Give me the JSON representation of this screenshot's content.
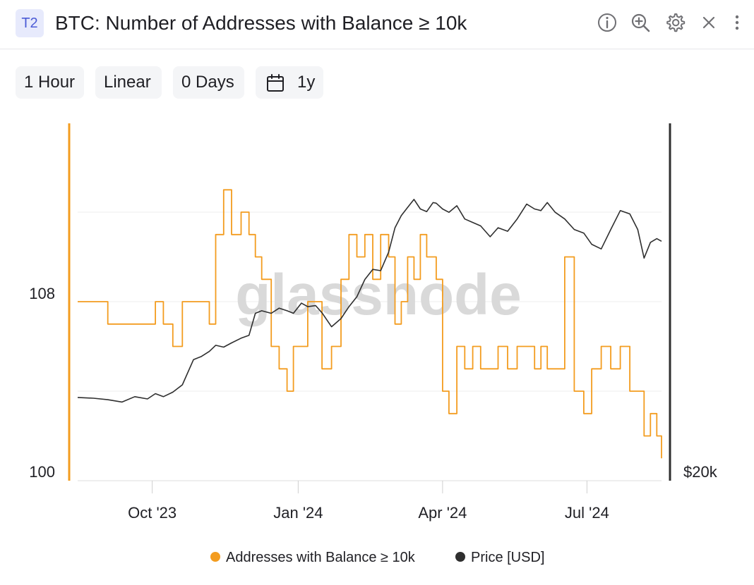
{
  "header": {
    "badge": "T2",
    "title": "BTC: Number of Addresses with Balance ≥ 10k",
    "icons": [
      "info-icon",
      "zoom-in-icon",
      "gear-icon",
      "close-icon",
      "more-vertical-icon"
    ]
  },
  "controls": {
    "resolution": "1 Hour",
    "scale": "Linear",
    "smoothing": "0 Days",
    "range": "1y",
    "range_icon": "calendar-icon"
  },
  "watermark": "glassnode",
  "colors": {
    "addresses": "#f39c1f",
    "price": "#2f2f2f",
    "grid": "#ececec"
  },
  "chart_data": {
    "type": "line",
    "x_tick_labels": [
      "Oct '23",
      "Jan '24",
      "Apr '24",
      "Jul '24"
    ],
    "left_axis": {
      "tick_labels": [
        "108",
        "100"
      ],
      "ylim": [
        100,
        116
      ]
    },
    "right_axis": {
      "tick_labels": [
        "$20k"
      ],
      "scale": "log",
      "ylim": [
        20000,
        100000
      ]
    },
    "grid": true,
    "legend_position": "bottom",
    "series": [
      {
        "name": "Addresses with Balance ≥ 10k",
        "axis": "left",
        "color": "#f39c1f",
        "x": [
          "2023-08-15",
          "2023-08-25",
          "2023-09-03",
          "2023-09-12",
          "2023-09-20",
          "2023-09-28",
          "2023-10-03",
          "2023-10-08",
          "2023-10-14",
          "2023-10-20",
          "2023-10-27",
          "2023-11-01",
          "2023-11-06",
          "2023-11-10",
          "2023-11-15",
          "2023-11-20",
          "2023-11-26",
          "2023-12-01",
          "2023-12-05",
          "2023-12-09",
          "2023-12-15",
          "2023-12-20",
          "2023-12-25",
          "2023-12-29",
          "2024-01-03",
          "2024-01-07",
          "2024-01-12",
          "2024-01-16",
          "2024-01-22",
          "2024-01-28",
          "2024-02-02",
          "2024-02-07",
          "2024-02-12",
          "2024-02-17",
          "2024-02-22",
          "2024-02-27",
          "2024-03-02",
          "2024-03-06",
          "2024-03-10",
          "2024-03-14",
          "2024-03-18",
          "2024-03-22",
          "2024-03-26",
          "2024-03-28",
          "2024-04-01",
          "2024-04-05",
          "2024-04-10",
          "2024-04-15",
          "2024-04-20",
          "2024-04-25",
          "2024-05-01",
          "2024-05-06",
          "2024-05-12",
          "2024-05-18",
          "2024-05-24",
          "2024-05-29",
          "2024-06-02",
          "2024-06-06",
          "2024-06-11",
          "2024-06-17",
          "2024-06-23",
          "2024-06-29",
          "2024-07-04",
          "2024-07-10",
          "2024-07-16",
          "2024-07-22",
          "2024-07-28",
          "2024-08-02",
          "2024-08-06",
          "2024-08-10",
          "2024-08-14",
          "2024-08-17"
        ],
        "values": [
          108,
          108,
          107,
          107,
          107,
          107,
          108,
          107,
          106,
          108,
          108,
          108,
          107,
          111,
          113,
          111,
          112,
          111,
          110,
          109,
          106,
          105,
          104,
          106,
          106,
          108,
          108,
          105,
          106,
          109,
          111,
          110,
          111,
          109,
          111,
          110,
          107,
          108,
          110,
          109,
          111,
          110,
          110,
          109,
          104,
          103,
          106,
          105,
          106,
          105,
          105,
          106,
          105,
          106,
          106,
          105,
          106,
          105,
          105,
          110,
          104,
          103,
          105,
          106,
          105,
          106,
          104,
          104,
          102,
          103,
          102,
          101
        ]
      },
      {
        "name": "Price [USD]",
        "axis": "right",
        "color": "#2f2f2f",
        "x": [
          "2023-08-15",
          "2023-08-25",
          "2023-09-03",
          "2023-09-12",
          "2023-09-20",
          "2023-09-28",
          "2023-10-03",
          "2023-10-08",
          "2023-10-14",
          "2023-10-20",
          "2023-10-27",
          "2023-11-01",
          "2023-11-06",
          "2023-11-10",
          "2023-11-15",
          "2023-11-20",
          "2023-11-26",
          "2023-12-01",
          "2023-12-05",
          "2023-12-09",
          "2023-12-15",
          "2023-12-20",
          "2023-12-25",
          "2023-12-29",
          "2024-01-03",
          "2024-01-07",
          "2024-01-12",
          "2024-01-16",
          "2024-01-22",
          "2024-01-28",
          "2024-02-02",
          "2024-02-07",
          "2024-02-12",
          "2024-02-17",
          "2024-02-22",
          "2024-02-27",
          "2024-03-02",
          "2024-03-06",
          "2024-03-10",
          "2024-03-14",
          "2024-03-18",
          "2024-03-22",
          "2024-03-26",
          "2024-03-28",
          "2024-04-01",
          "2024-04-05",
          "2024-04-10",
          "2024-04-15",
          "2024-04-20",
          "2024-04-25",
          "2024-05-01",
          "2024-05-06",
          "2024-05-12",
          "2024-05-18",
          "2024-05-24",
          "2024-05-29",
          "2024-06-02",
          "2024-06-06",
          "2024-06-11",
          "2024-06-17",
          "2024-06-23",
          "2024-06-29",
          "2024-07-04",
          "2024-07-10",
          "2024-07-16",
          "2024-07-22",
          "2024-07-28",
          "2024-08-02",
          "2024-08-06",
          "2024-08-10",
          "2024-08-14",
          "2024-08-17"
        ],
        "values": [
          29100,
          29000,
          28800,
          28500,
          29200,
          28900,
          29600,
          29200,
          29800,
          30800,
          34500,
          35000,
          35800,
          36800,
          36500,
          37200,
          38000,
          38500,
          42500,
          43000,
          42500,
          43500,
          43000,
          42500,
          44500,
          43800,
          44000,
          42600,
          40000,
          41500,
          43800,
          45800,
          49500,
          51800,
          51500,
          56000,
          62500,
          66000,
          68500,
          71000,
          68000,
          67200,
          70000,
          69800,
          68000,
          67000,
          69000,
          65000,
          64000,
          63000,
          60000,
          62500,
          61500,
          65000,
          69500,
          68000,
          67500,
          70000,
          67000,
          65000,
          62000,
          61000,
          58000,
          56800,
          62000,
          67500,
          66500,
          62000,
          54500,
          58500,
          59500,
          58800
        ]
      }
    ]
  },
  "legend": {
    "addresses_label": "Addresses with Balance ≥ 10k",
    "price_label": "Price [USD]"
  }
}
